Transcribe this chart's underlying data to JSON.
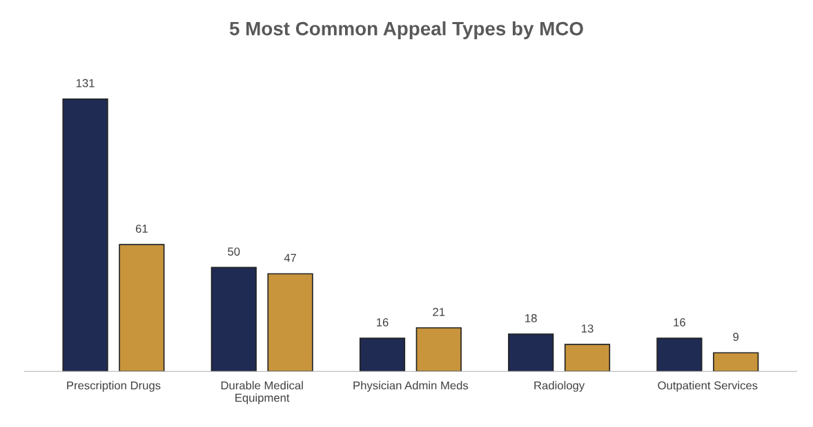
{
  "chart_data": {
    "type": "bar",
    "title": "5 Most Common Appeal Types by MCO",
    "categories": [
      "Prescription Drugs",
      "Durable Medical\nEquipment",
      "Physician Admin Meds",
      "Radiology",
      "Outpatient Services"
    ],
    "series": [
      {
        "color": "#1f2b52",
        "values": [
          131,
          50,
          16,
          18,
          16
        ]
      },
      {
        "color": "#c8953d",
        "values": [
          61,
          47,
          21,
          13,
          9
        ]
      }
    ],
    "data_labels": true,
    "grid": false
  }
}
